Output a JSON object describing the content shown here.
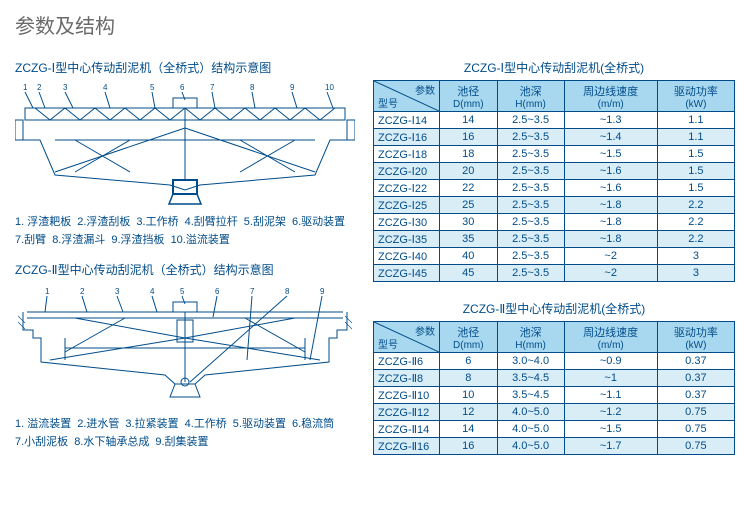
{
  "title": "参数及结构",
  "diagrams": [
    {
      "title": "ZCZG-Ⅰ型中心传动刮泥机（全桥式）结构示意图",
      "legend": [
        "1. 浮渣耙板",
        "2.浮渣刮板",
        "3.工作桥",
        "4.刮臂拉杆",
        "5.刮泥架",
        "6.驱动装置",
        "7.刮臂",
        "8.浮渣漏斗",
        "9.浮渣挡板",
        "10.溢流装置"
      ]
    },
    {
      "title": "ZCZG-Ⅱ型中心传动刮泥机（全桥式）结构示意图",
      "legend": [
        "1. 溢流装置",
        "2.进水管",
        "3.拉紧装置",
        "4.工作桥",
        "5.驱动装置",
        "6.稳流筒",
        "7.小刮泥板",
        "8.水下轴承总成",
        "9.刮集装置"
      ]
    }
  ],
  "tables": [
    {
      "title": "ZCZG-Ⅰ型中心传动刮泥机(全桥式)",
      "diag": {
        "param": "参数",
        "model": "型号"
      },
      "columns": [
        {
          "h1": "池径",
          "h2": "D(mm)"
        },
        {
          "h1": "池深",
          "h2": "H(mm)"
        },
        {
          "h1": "周边线速度",
          "h2": "(m/m)"
        },
        {
          "h1": "驱动功率",
          "h2": "(kW)"
        }
      ],
      "rows": [
        [
          "ZCZG-Ⅰ14",
          "14",
          "2.5~3.5",
          "~1.3",
          "1.1"
        ],
        [
          "ZCZG-Ⅰ16",
          "16",
          "2.5~3.5",
          "~1.4",
          "1.1"
        ],
        [
          "ZCZG-Ⅰ18",
          "18",
          "2.5~3.5",
          "~1.5",
          "1.5"
        ],
        [
          "ZCZG-Ⅰ20",
          "20",
          "2.5~3.5",
          "~1.6",
          "1.5"
        ],
        [
          "ZCZG-Ⅰ22",
          "22",
          "2.5~3.5",
          "~1.6",
          "1.5"
        ],
        [
          "ZCZG-Ⅰ25",
          "25",
          "2.5~3.5",
          "~1.8",
          "2.2"
        ],
        [
          "ZCZG-Ⅰ30",
          "30",
          "2.5~3.5",
          "~1.8",
          "2.2"
        ],
        [
          "ZCZG-Ⅰ35",
          "35",
          "2.5~3.5",
          "~1.8",
          "2.2"
        ],
        [
          "ZCZG-Ⅰ40",
          "40",
          "2.5~3.5",
          "~2",
          "3"
        ],
        [
          "ZCZG-Ⅰ45",
          "45",
          "2.5~3.5",
          "~2",
          "3"
        ]
      ]
    },
    {
      "title": "ZCZG-Ⅱ型中心传动刮泥机(全桥式)",
      "diag": {
        "param": "参数",
        "model": "型号"
      },
      "columns": [
        {
          "h1": "池径",
          "h2": "D(mm)"
        },
        {
          "h1": "池深",
          "h2": "H(mm)"
        },
        {
          "h1": "周边线速度",
          "h2": "(m/m)"
        },
        {
          "h1": "驱动功率",
          "h2": "(kW)"
        }
      ],
      "rows": [
        [
          "ZCZG-Ⅱ6",
          "6",
          "3.0~4.0",
          "~0.9",
          "0.37"
        ],
        [
          "ZCZG-Ⅱ8",
          "8",
          "3.5~4.5",
          "~1",
          "0.37"
        ],
        [
          "ZCZG-Ⅱ10",
          "10",
          "3.5~4.5",
          "~1.1",
          "0.37"
        ],
        [
          "ZCZG-Ⅱ12",
          "12",
          "4.0~5.0",
          "~1.2",
          "0.75"
        ],
        [
          "ZCZG-Ⅱ14",
          "14",
          "4.0~5.0",
          "~1.5",
          "0.75"
        ],
        [
          "ZCZG-Ⅱ16",
          "16",
          "4.0~5.0",
          "~1.7",
          "0.75"
        ]
      ]
    }
  ]
}
